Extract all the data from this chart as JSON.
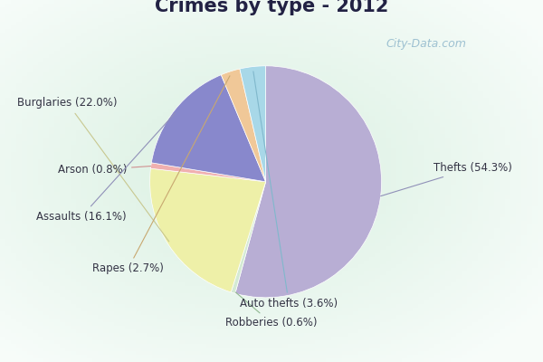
{
  "title": "Crimes by type - 2012",
  "slices": [
    {
      "label": "Thefts (54.3%)",
      "value": 54.3,
      "color": "#b8aed4"
    },
    {
      "label": "Robberies (0.6%)",
      "value": 0.6,
      "color": "#d4ead4"
    },
    {
      "label": "Burglaries (22.0%)",
      "value": 22.0,
      "color": "#eef0a8"
    },
    {
      "label": "Arson (0.8%)",
      "value": 0.8,
      "color": "#f0b0b0"
    },
    {
      "label": "Assaults (16.1%)",
      "value": 16.1,
      "color": "#8888cc"
    },
    {
      "label": "Rapes (2.7%)",
      "value": 2.7,
      "color": "#f0c898"
    },
    {
      "label": "Auto thefts (3.6%)",
      "value": 3.6,
      "color": "#a8d8e8"
    }
  ],
  "startangle": 90,
  "bg_outer": "#00e5ff",
  "bg_inner_top": "#d0f0e8",
  "bg_inner_bottom": "#e8f4e8",
  "title_fontsize": 15,
  "title_color": "#222244",
  "label_fontsize": 8.5,
  "watermark": "City-Data.com",
  "watermark_color": "#90b8cc"
}
